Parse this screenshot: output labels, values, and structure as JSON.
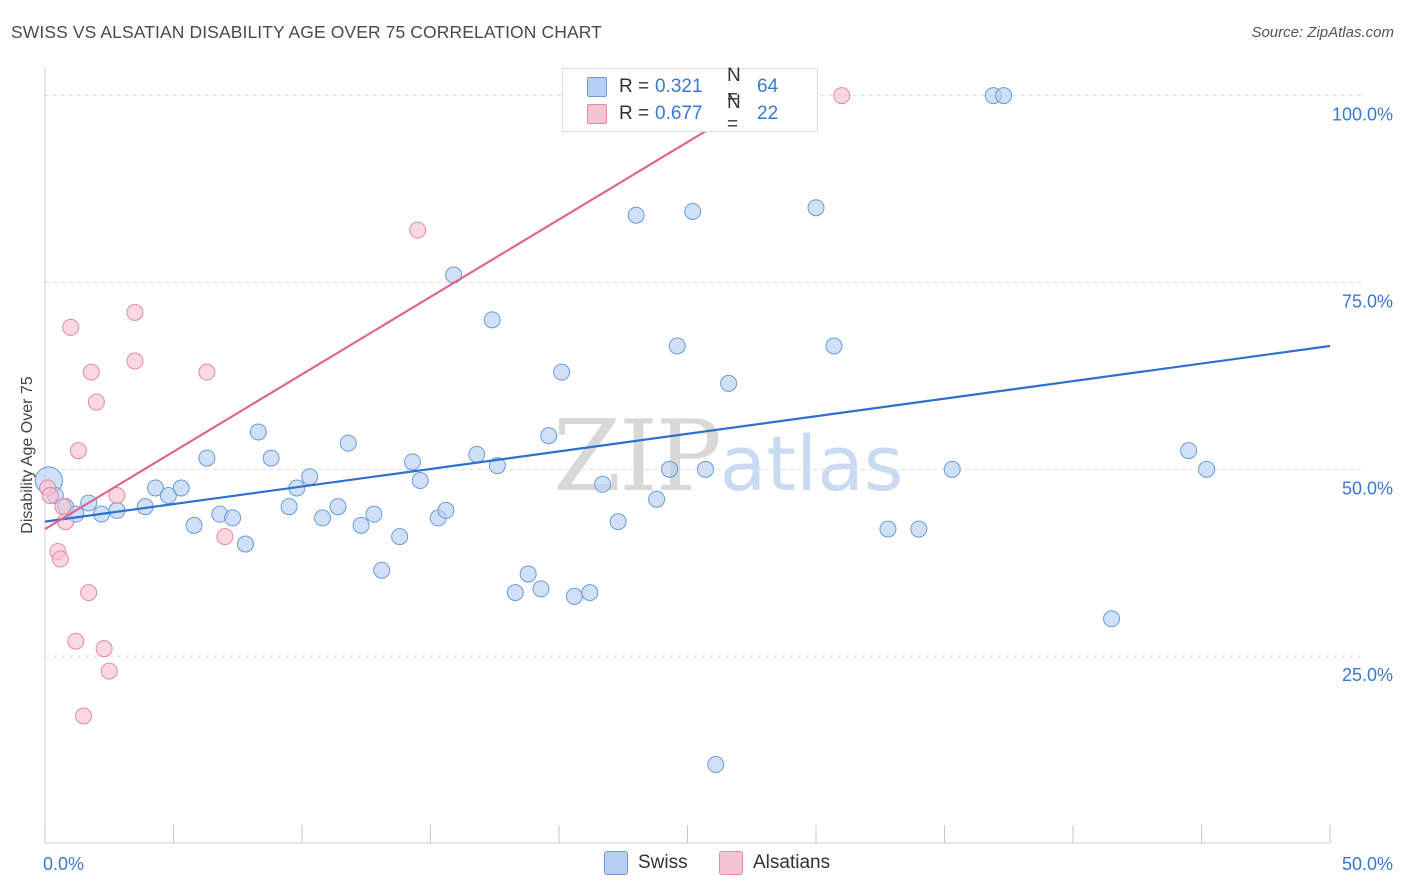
{
  "header": {
    "title": "SWISS VS ALSATIAN DISABILITY AGE OVER 75 CORRELATION CHART",
    "source": "Source: ZipAtlas.com"
  },
  "watermark": {
    "part1": "ZIP",
    "part2": "atlas"
  },
  "legend": {
    "rows": [
      {
        "r_label": "R =",
        "r_value": "0.321",
        "n_label": "N =",
        "n_value": "64"
      },
      {
        "r_label": "R =",
        "r_value": "0.677",
        "n_label": "N =",
        "n_value": "22"
      }
    ]
  },
  "bottom_legend": {
    "swiss": "Swiss",
    "alsatians": "Alsatians"
  },
  "colors": {
    "swiss_fill": "#b6cff2",
    "swiss_stroke": "#6c9bd8",
    "swiss_line": "#2e6fcf",
    "alsatian_fill": "#f6c3d2",
    "alsatian_stroke": "#e38aa7",
    "alsatian_line": "#e0668f",
    "tick_label": "#3a78d0",
    "grid": "#dedede"
  },
  "chart_data": {
    "type": "scatter",
    "title": "SWISS VS ALSATIAN DISABILITY AGE OVER 75 CORRELATION CHART",
    "xlabel": "",
    "ylabel": "Disability Age Over 75",
    "xlim": [
      0,
      50
    ],
    "ylim": [
      0,
      104.5
    ],
    "x_tick_labels": [
      {
        "value": 0,
        "label": "0.0%"
      },
      {
        "value": 50,
        "label": "50.0%"
      }
    ],
    "y_tick_labels": [
      {
        "value": 25,
        "label": "25.0%"
      },
      {
        "value": 50,
        "label": "50.0%"
      },
      {
        "value": 75,
        "label": "75.0%"
      },
      {
        "value": 100,
        "label": "100.0%"
      }
    ],
    "grid": true,
    "legend_position": "top-center",
    "series": [
      {
        "name": "Swiss",
        "r": 0.321,
        "n": 64,
        "trend": {
          "x": [
            0,
            50
          ],
          "y": [
            43.0,
            66.5
          ]
        },
        "points": [
          [
            0.15,
            48.5,
            1.7
          ],
          [
            0.4,
            46.5,
            1
          ],
          [
            0.8,
            45.0,
            1
          ],
          [
            1.2,
            44.0,
            1
          ],
          [
            1.7,
            45.5,
            1
          ],
          [
            2.2,
            44.0,
            1
          ],
          [
            2.8,
            44.5,
            1
          ],
          [
            3.9,
            45.0,
            1
          ],
          [
            4.3,
            47.5,
            1
          ],
          [
            4.8,
            46.5,
            1
          ],
          [
            5.3,
            47.5,
            1
          ],
          [
            5.8,
            42.5,
            1
          ],
          [
            6.3,
            51.5,
            1
          ],
          [
            6.8,
            44.0,
            1
          ],
          [
            7.3,
            43.5,
            1
          ],
          [
            7.8,
            40.0,
            1
          ],
          [
            8.3,
            55.0,
            1
          ],
          [
            8.8,
            51.5,
            1
          ],
          [
            9.5,
            45.0,
            1
          ],
          [
            9.8,
            47.5,
            1
          ],
          [
            10.3,
            49.0,
            1
          ],
          [
            10.8,
            43.5,
            1
          ],
          [
            11.4,
            45.0,
            1
          ],
          [
            11.8,
            53.5,
            1
          ],
          [
            12.3,
            42.5,
            1
          ],
          [
            12.8,
            44.0,
            1
          ],
          [
            13.1,
            36.5,
            1
          ],
          [
            13.8,
            41.0,
            1
          ],
          [
            14.3,
            51.0,
            1
          ],
          [
            14.6,
            48.5,
            1
          ],
          [
            15.3,
            43.5,
            1
          ],
          [
            15.6,
            44.5,
            1
          ],
          [
            15.9,
            76.0,
            1
          ],
          [
            16.8,
            52.0,
            1
          ],
          [
            17.4,
            70.0,
            1
          ],
          [
            17.6,
            50.5,
            1
          ],
          [
            18.3,
            33.5,
            1
          ],
          [
            18.8,
            36.0,
            1
          ],
          [
            19.3,
            34.0,
            1
          ],
          [
            19.6,
            54.5,
            1
          ],
          [
            20.1,
            63.0,
            1
          ],
          [
            20.6,
            33.0,
            1
          ],
          [
            21.2,
            33.5,
            1
          ],
          [
            21.7,
            48.0,
            1
          ],
          [
            22.3,
            43.0,
            1
          ],
          [
            23.0,
            84.0,
            1
          ],
          [
            23.8,
            46.0,
            1
          ],
          [
            24.3,
            50.0,
            1
          ],
          [
            24.6,
            66.5,
            1
          ],
          [
            25.2,
            84.5,
            1
          ],
          [
            25.7,
            50.0,
            1
          ],
          [
            26.1,
            10.5,
            1
          ],
          [
            26.6,
            61.5,
            1
          ],
          [
            27.1,
            100.0,
            1
          ],
          [
            30.0,
            85.0,
            1
          ],
          [
            30.7,
            66.5,
            1
          ],
          [
            32.8,
            42.0,
            1
          ],
          [
            34.0,
            42.0,
            1
          ],
          [
            35.3,
            50.0,
            1
          ],
          [
            36.9,
            100.0,
            1
          ],
          [
            37.3,
            100.0,
            1
          ],
          [
            41.5,
            30.0,
            1
          ],
          [
            44.5,
            52.5,
            1
          ],
          [
            45.2,
            50.0,
            1
          ]
        ]
      },
      {
        "name": "Alsatians",
        "r": 0.677,
        "n": 22,
        "trend": {
          "x": [
            0,
            28
          ],
          "y": [
            42.0,
            100.0
          ]
        },
        "points": [
          [
            0.1,
            47.5,
            1
          ],
          [
            0.2,
            46.5,
            1
          ],
          [
            0.5,
            39.0,
            1
          ],
          [
            0.6,
            38.0,
            1
          ],
          [
            0.7,
            45.0,
            1
          ],
          [
            0.8,
            43.0,
            1
          ],
          [
            1.0,
            69.0,
            1
          ],
          [
            1.2,
            27.0,
            1
          ],
          [
            1.3,
            52.5,
            1
          ],
          [
            1.5,
            17.0,
            1
          ],
          [
            1.7,
            33.5,
            1
          ],
          [
            1.8,
            63.0,
            1
          ],
          [
            2.0,
            59.0,
            1
          ],
          [
            2.3,
            26.0,
            1
          ],
          [
            2.5,
            23.0,
            1
          ],
          [
            2.8,
            46.5,
            1
          ],
          [
            3.5,
            71.0,
            1
          ],
          [
            3.5,
            64.5,
            1
          ],
          [
            6.3,
            63.0,
            1
          ],
          [
            7.0,
            41.0,
            1
          ],
          [
            14.5,
            82.0,
            1
          ],
          [
            31.0,
            100.0,
            1
          ]
        ]
      }
    ]
  }
}
